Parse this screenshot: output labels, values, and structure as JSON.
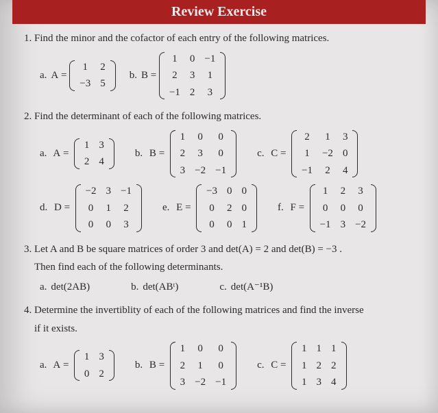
{
  "colors": {
    "header_bg": "#a82020",
    "header_fg": "#f5eaea",
    "page_bg": "#e8e6e6",
    "text": "#2a2a2a"
  },
  "header": {
    "title": "Review Exercise"
  },
  "problems": [
    {
      "text": "Find the minor and the cofactor of each entry of the following matrices.",
      "items": [
        {
          "label": "a.",
          "name": "A",
          "rows": [
            [
              "1",
              "2"
            ],
            [
              "−3",
              "5"
            ]
          ]
        },
        {
          "label": "b.",
          "name": "B",
          "rows": [
            [
              "1",
              "0",
              "−1"
            ],
            [
              "2",
              "3",
              "1"
            ],
            [
              "−1",
              "2",
              "3"
            ]
          ]
        }
      ]
    },
    {
      "text": "Find the determinant of each of the following matrices.",
      "items": [
        {
          "label": "a.",
          "name": "A",
          "rows": [
            [
              "1",
              "3"
            ],
            [
              "2",
              "4"
            ]
          ]
        },
        {
          "label": "b.",
          "name": "B",
          "rows": [
            [
              "1",
              "0",
              "0"
            ],
            [
              "2",
              "3",
              "0"
            ],
            [
              "3",
              "−2",
              "−1"
            ]
          ]
        },
        {
          "label": "c.",
          "name": "C",
          "rows": [
            [
              "2",
              "1",
              "3"
            ],
            [
              "1",
              "−2",
              "0"
            ],
            [
              "−1",
              "2",
              "4"
            ]
          ]
        },
        {
          "label": "d.",
          "name": "D",
          "rows": [
            [
              "−2",
              "3",
              "−1"
            ],
            [
              "0",
              "1",
              "2"
            ],
            [
              "0",
              "0",
              "3"
            ]
          ]
        },
        {
          "label": "e.",
          "name": "E",
          "rows": [
            [
              "−3",
              "0",
              "0"
            ],
            [
              "0",
              "2",
              "0"
            ],
            [
              "0",
              "0",
              "1"
            ]
          ]
        },
        {
          "label": "f.",
          "name": "F",
          "rows": [
            [
              "1",
              "2",
              "3"
            ],
            [
              "0",
              "0",
              "0"
            ],
            [
              "−1",
              "3",
              "−2"
            ]
          ]
        }
      ]
    },
    {
      "text": "Let A and B be square matrices of order 3 and det(A) = 2 and det(B) = −3 .",
      "text2": "Then find each of the following determinants.",
      "items": [
        {
          "label": "a.",
          "expr": "det(2AB)"
        },
        {
          "label": "b.",
          "expr": "det(ABᵗ)"
        },
        {
          "label": "c.",
          "expr": "det(A⁻¹B)"
        }
      ]
    },
    {
      "text": "Determine the invertiblity of each of the following matrices and find the inverse",
      "text2": "if it exists.",
      "items": [
        {
          "label": "a.",
          "name": "A",
          "rows": [
            [
              "1",
              "3"
            ],
            [
              "0",
              "2"
            ]
          ]
        },
        {
          "label": "b.",
          "name": "B",
          "rows": [
            [
              "1",
              "0",
              "0"
            ],
            [
              "2",
              "1",
              "0"
            ],
            [
              "3",
              "−2",
              "−1"
            ]
          ]
        },
        {
          "label": "c.",
          "name": "C",
          "rows": [
            [
              "1",
              "1",
              "1"
            ],
            [
              "1",
              "2",
              "2"
            ],
            [
              "1",
              "3",
              "4"
            ]
          ]
        }
      ]
    }
  ]
}
